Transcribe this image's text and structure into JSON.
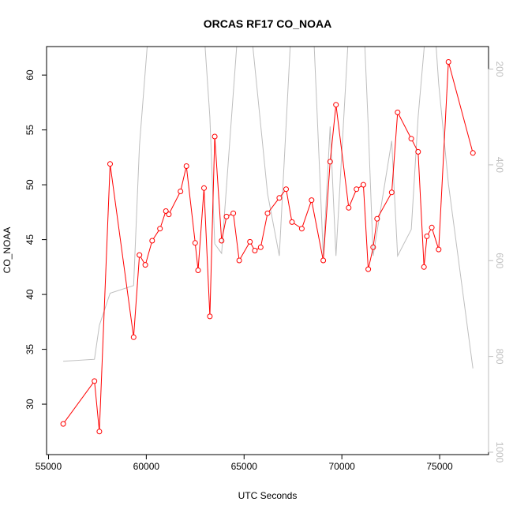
{
  "chart_data": {
    "type": "line",
    "title": "ORCAS RF17 CO_NOAA",
    "xlabel": "UTC Seconds",
    "ylabel": "CO_NOAA",
    "xlim": [
      54900,
      77500
    ],
    "ylim": [
      25.4,
      62.6
    ],
    "y2lim": [
      1005,
      153
    ],
    "y2_reversed": true,
    "xticks": [
      55000,
      60000,
      65000,
      70000,
      75000
    ],
    "yticks": [
      30,
      35,
      40,
      45,
      50,
      55,
      60
    ],
    "y2ticks": [
      200,
      400,
      600,
      800,
      1000
    ],
    "grid": false,
    "legend": "none",
    "colors": {
      "primary": "#ff0000",
      "secondary": "#bebebe",
      "axis": "#000000"
    },
    "series": [
      {
        "role": "primary",
        "marker": "circle-open",
        "x": [
          55750,
          57350,
          57600,
          58150,
          59350,
          59650,
          59950,
          60300,
          60700,
          61000,
          61150,
          61750,
          62050,
          62500,
          62650,
          62950,
          63250,
          63500,
          63850,
          64100,
          64450,
          64750,
          65300,
          65550,
          65850,
          66200,
          66800,
          67150,
          67450,
          67950,
          68450,
          69050,
          69400,
          69700,
          70350,
          70750,
          71100,
          71350,
          71600,
          71800,
          72550,
          72850,
          73550,
          73900,
          74200,
          74350,
          74600,
          74950,
          75450,
          76700
        ],
        "y": [
          28.2,
          32.1,
          27.5,
          51.9,
          36.1,
          43.6,
          42.7,
          44.9,
          46.0,
          47.6,
          47.3,
          49.4,
          51.7,
          44.7,
          42.2,
          49.7,
          38.0,
          54.4,
          44.9,
          47.1,
          47.4,
          43.1,
          44.8,
          44.0,
          44.3,
          47.4,
          48.8,
          49.6,
          46.6,
          46.0,
          48.6,
          43.1,
          52.1,
          57.3,
          47.9,
          49.6,
          50.0,
          42.3,
          44.3,
          46.9,
          49.3,
          56.6,
          54.2,
          53.0,
          42.5,
          45.3,
          46.1,
          44.1,
          61.2,
          52.9
        ]
      },
      {
        "role": "secondary",
        "axis": "right",
        "x": [
          55750,
          57350,
          57600,
          58150,
          59350,
          59650,
          60300,
          60800,
          61750,
          62050,
          62650,
          62950,
          63250,
          63500,
          63850,
          64750,
          65100,
          66200,
          66800,
          67450,
          67950,
          68450,
          69050,
          69400,
          69700,
          70350,
          70750,
          71100,
          71350,
          71600,
          72550,
          72850,
          73550,
          73900,
          74350,
          74600,
          74950,
          75450,
          76700
        ],
        "y": [
          810,
          806,
          735,
          668,
          652,
          360,
          20,
          30,
          127,
          120,
          40,
          120,
          300,
          565,
          585,
          80,
          10,
          460,
          590,
          80,
          10,
          25,
          590,
          320,
          590,
          120,
          45,
          80,
          320,
          590,
          350,
          590,
          535,
          300,
          90,
          20,
          230,
          440,
          825
        ]
      }
    ]
  }
}
